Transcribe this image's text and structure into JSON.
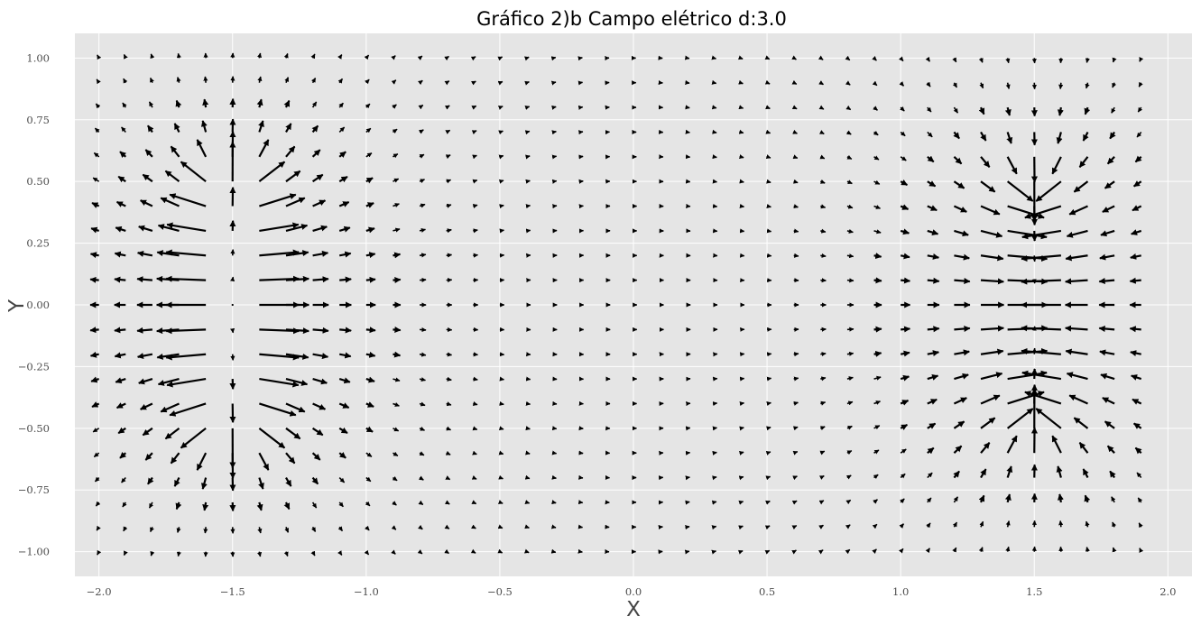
{
  "chart_data": {
    "type": "quiver",
    "title": "Gráfico 2)b Campo elétrico d:3.0",
    "xlabel": "X",
    "ylabel": "Y",
    "xlim": [
      -2.09,
      2.09
    ],
    "ylim": [
      -1.1,
      1.1
    ],
    "xticks": [
      -2.0,
      -1.5,
      -1.0,
      -0.5,
      0.0,
      0.5,
      1.0,
      1.5,
      2.0
    ],
    "xtick_labels": [
      "−2.0",
      "−1.5",
      "−1.0",
      "−0.5",
      "0.0",
      "0.5",
      "1.0",
      "1.5",
      "2.0"
    ],
    "yticks": [
      -1.0,
      -0.75,
      -0.5,
      -0.25,
      0.0,
      0.25,
      0.5,
      0.75,
      1.0
    ],
    "ytick_labels": [
      "−1.00",
      "−0.75",
      "−0.50",
      "−0.25",
      "0.00",
      "0.25",
      "0.50",
      "0.75",
      "1.00"
    ],
    "grid": true,
    "background_color": "#e5e5e5",
    "grid_color": "#ffffff",
    "arrow_color": "#000000",
    "grid_x": {
      "start": -2.0,
      "stop": 1.9,
      "step": 0.1
    },
    "grid_y": {
      "start": -1.0,
      "stop": 1.0,
      "step": 0.1
    },
    "sources": [
      {
        "type": "positive-plate",
        "x": -1.5,
        "y_range": [
          -0.5,
          0.5
        ],
        "field_direction": "outward"
      },
      {
        "type": "negative-plate",
        "x": 1.5,
        "y_range": [
          -0.5,
          0.5
        ],
        "field_direction": "inward"
      }
    ]
  }
}
